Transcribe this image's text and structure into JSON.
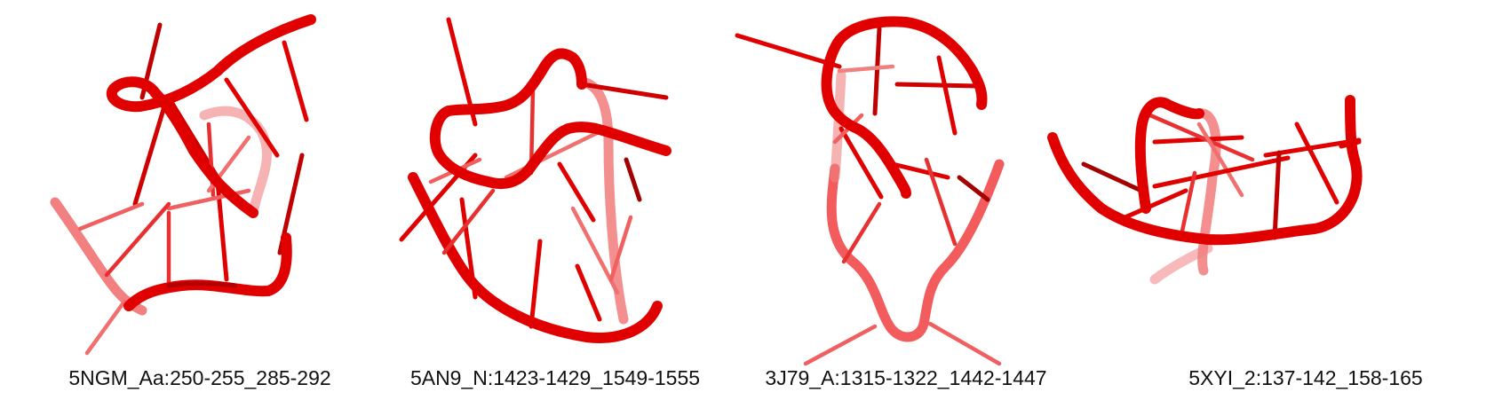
{
  "colors": {
    "strand": "#e00000",
    "strand_dark": "#a30000",
    "strand_faded": "#f07070"
  },
  "panels": [
    {
      "id": "5NGM",
      "caption": "5NGM_Aa:250-255_285-292"
    },
    {
      "id": "5AN9",
      "caption": "5AN9_N:1423-1429_1549-1555"
    },
    {
      "id": "3J79",
      "caption": "3J79_A:1315-1322_1442-1447"
    },
    {
      "id": "5XYI",
      "caption": "5XYI_2:137-142_158-165"
    }
  ]
}
